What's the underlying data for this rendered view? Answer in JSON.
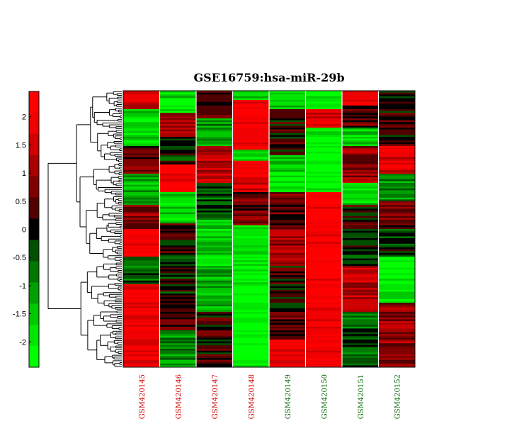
{
  "chart_data": {
    "type": "heatmap",
    "title": "GSE16759:hsa-miR-29b",
    "columns": [
      {
        "label": "GSM420145",
        "color": "#d40000"
      },
      {
        "label": "GSM420146",
        "color": "#d40000"
      },
      {
        "label": "GSM420147",
        "color": "#d40000"
      },
      {
        "label": "GSM420148",
        "color": "#d40000"
      },
      {
        "label": "GSM420149",
        "color": "#107010"
      },
      {
        "label": "GSM420150",
        "color": "#107010"
      },
      {
        "label": "GSM420151",
        "color": "#107010"
      },
      {
        "label": "GSM420152",
        "color": "#107010"
      }
    ],
    "colorbar": {
      "range": [
        -2.45,
        2.45
      ],
      "ticks": [
        2,
        1.5,
        1,
        0.5,
        0,
        -0.5,
        -1,
        -1.5,
        -2
      ],
      "colors": [
        "#00ff00",
        "#00e600",
        "#00c800",
        "#00a000",
        "#007800",
        "#005000",
        "#000000",
        "#500000",
        "#800000",
        "#a80000",
        "#d00000",
        "#f00000",
        "#ff0000"
      ]
    },
    "row_count": 150,
    "blocks": [
      {
        "col": 0,
        "rows": [
          [
            0,
            10,
            1.5
          ],
          [
            10,
            30,
            -1.8
          ],
          [
            30,
            45,
            0.6
          ],
          [
            45,
            62,
            -1.2
          ],
          [
            62,
            75,
            0.8
          ],
          [
            75,
            90,
            2.1
          ],
          [
            90,
            105,
            -0.6
          ],
          [
            105,
            150,
            1.9
          ]
        ]
      },
      {
        "col": 1,
        "rows": [
          [
            0,
            12,
            -1.8
          ],
          [
            12,
            25,
            1.2
          ],
          [
            25,
            40,
            -0.2
          ],
          [
            40,
            55,
            2.0
          ],
          [
            55,
            72,
            -1.5
          ],
          [
            72,
            88,
            0.3
          ],
          [
            88,
            110,
            -0.1
          ],
          [
            110,
            130,
            0.4
          ],
          [
            130,
            150,
            -1.0
          ]
        ]
      },
      {
        "col": 2,
        "rows": [
          [
            0,
            15,
            0.2
          ],
          [
            15,
            30,
            -1.1
          ],
          [
            30,
            50,
            1.3
          ],
          [
            50,
            70,
            -0.4
          ],
          [
            70,
            95,
            -1.6
          ],
          [
            95,
            120,
            -1.3
          ],
          [
            120,
            150,
            0.1
          ]
        ]
      },
      {
        "col": 3,
        "rows": [
          [
            0,
            5,
            -1.5
          ],
          [
            5,
            10,
            1.8
          ],
          [
            10,
            32,
            2.2
          ],
          [
            32,
            38,
            -1.9
          ],
          [
            38,
            55,
            1.7
          ],
          [
            55,
            73,
            0.6
          ],
          [
            73,
            90,
            -2.1
          ],
          [
            90,
            150,
            -2.2
          ]
        ]
      },
      {
        "col": 4,
        "rows": [
          [
            0,
            10,
            -1.8
          ],
          [
            10,
            35,
            0.2
          ],
          [
            35,
            55,
            -1.7
          ],
          [
            55,
            75,
            0.4
          ],
          [
            75,
            95,
            1.1
          ],
          [
            95,
            120,
            0.1
          ],
          [
            120,
            135,
            0.6
          ],
          [
            135,
            150,
            1.9
          ]
        ]
      },
      {
        "col": 5,
        "rows": [
          [
            0,
            10,
            -2.1
          ],
          [
            10,
            20,
            1.6
          ],
          [
            20,
            55,
            -2.2
          ],
          [
            55,
            150,
            2.2
          ]
        ]
      },
      {
        "col": 6,
        "rows": [
          [
            0,
            8,
            2.0
          ],
          [
            8,
            20,
            0.4
          ],
          [
            20,
            30,
            -1.6
          ],
          [
            30,
            50,
            0.9
          ],
          [
            50,
            62,
            -1.8
          ],
          [
            62,
            75,
            0.3
          ],
          [
            75,
            95,
            -0.2
          ],
          [
            95,
            120,
            1.3
          ],
          [
            120,
            150,
            -0.5
          ]
        ]
      },
      {
        "col": 7,
        "rows": [
          [
            0,
            15,
            0.1
          ],
          [
            15,
            30,
            0.3
          ],
          [
            30,
            45,
            1.8
          ],
          [
            45,
            60,
            -0.8
          ],
          [
            60,
            75,
            0.7
          ],
          [
            75,
            90,
            -0.4
          ],
          [
            90,
            115,
            -2.0
          ],
          [
            115,
            150,
            0.9
          ]
        ]
      }
    ]
  }
}
